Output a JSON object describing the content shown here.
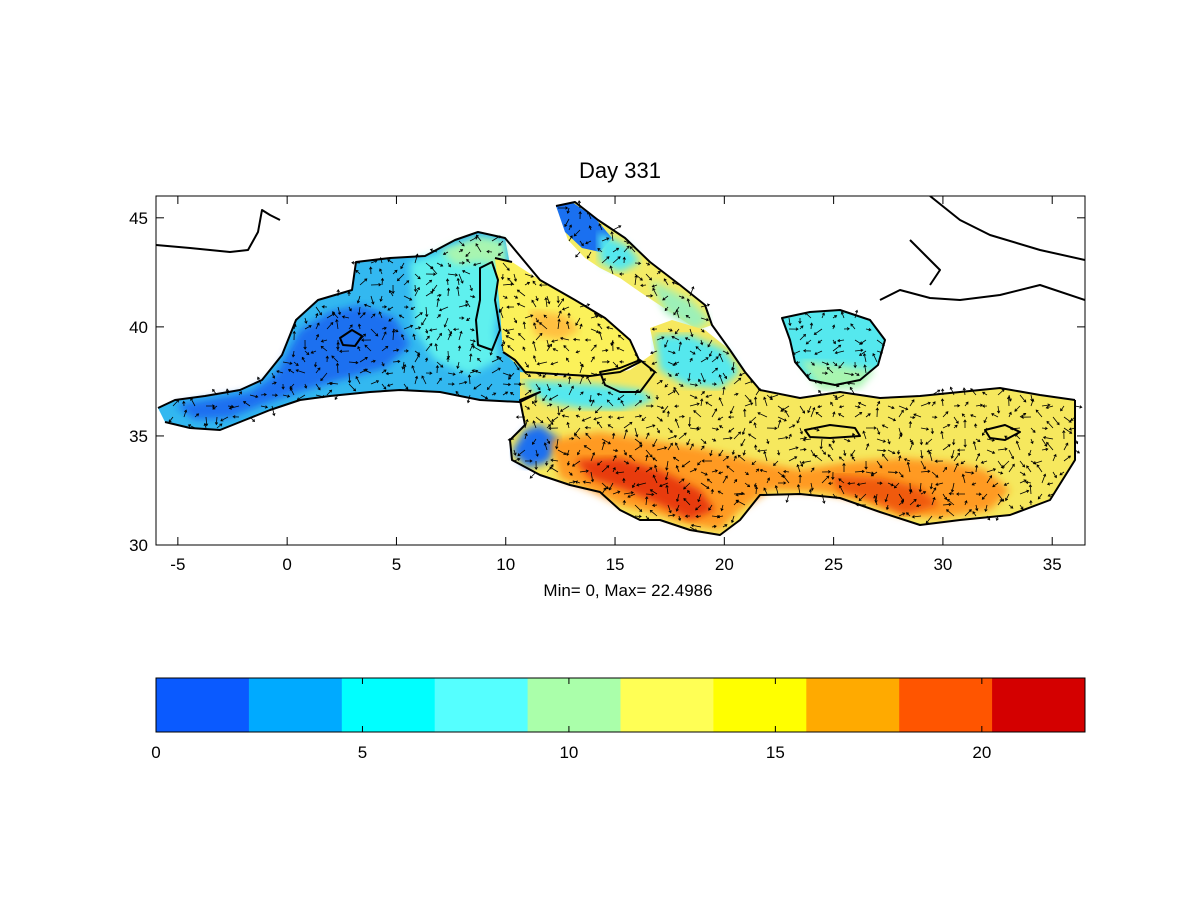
{
  "title": "Day 331",
  "annotation": "Min= 0,  Max= 22.4986",
  "map": {
    "x_range": [
      -6,
      36.5
    ],
    "y_range": [
      30,
      46
    ],
    "x_ticks": [
      "-5",
      "0",
      "5",
      "10",
      "15",
      "20",
      "25",
      "30",
      "35"
    ],
    "x_tick_values": [
      -5,
      0,
      5,
      10,
      15,
      20,
      25,
      30,
      35
    ],
    "y_ticks": [
      "30",
      "35",
      "40",
      "45"
    ],
    "y_tick_values": [
      30,
      35,
      40,
      45
    ],
    "field_note": "filled contour field with current-velocity arrows over the Mediterranean Sea"
  },
  "colorbar": {
    "range": [
      0,
      22.4986
    ],
    "ticks": [
      "0",
      "5",
      "10",
      "15",
      "20"
    ],
    "tick_values": [
      0,
      5,
      10,
      15,
      20
    ],
    "colors": [
      "#0a5aff",
      "#00aaff",
      "#00ffff",
      "#55ffff",
      "#aaffaa",
      "#ffff55",
      "#ffff00",
      "#ffaa00",
      "#ff5500",
      "#d40000"
    ]
  }
}
